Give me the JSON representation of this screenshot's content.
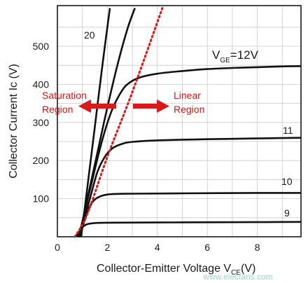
{
  "chart_data": {
    "type": "line",
    "xlabel_main": "Collector-Emitter Voltage V",
    "xlabel_sub": "CE",
    "xlabel_unit": "(V)",
    "ylabel": "Collector Current Ic (V)",
    "xlim": [
      0,
      10
    ],
    "ylim": [
      0,
      600
    ],
    "x_ticks": [
      0,
      2,
      4,
      6,
      8
    ],
    "y_ticks": [
      100,
      200,
      300,
      400,
      500
    ],
    "grid": true,
    "series": [
      {
        "name": "9",
        "color": "#111111",
        "points": [
          [
            0.7,
            0
          ],
          [
            0.85,
            10
          ],
          [
            1.0,
            25
          ],
          [
            1.2,
            33
          ],
          [
            1.5,
            36
          ],
          [
            2,
            37
          ],
          [
            4,
            37.5
          ],
          [
            6,
            38
          ],
          [
            8,
            38.5
          ],
          [
            10,
            39
          ]
        ]
      },
      {
        "name": "10",
        "color": "#111111",
        "points": [
          [
            0.75,
            0
          ],
          [
            0.95,
            15
          ],
          [
            1.1,
            45
          ],
          [
            1.3,
            80
          ],
          [
            1.5,
            98
          ],
          [
            1.8,
            108
          ],
          [
            2.2,
            112
          ],
          [
            3,
            113
          ],
          [
            5,
            114
          ],
          [
            8,
            115
          ],
          [
            10,
            115
          ]
        ]
      },
      {
        "name": "11",
        "color": "#111111",
        "points": [
          [
            0.8,
            0
          ],
          [
            1.0,
            30
          ],
          [
            1.3,
            100
          ],
          [
            1.6,
            170
          ],
          [
            1.9,
            210
          ],
          [
            2.2,
            232
          ],
          [
            2.6,
            244
          ],
          [
            3,
            249
          ],
          [
            4,
            253
          ],
          [
            6,
            256
          ],
          [
            8,
            258
          ],
          [
            10,
            260
          ]
        ]
      },
      {
        "name": "V_GE=12V",
        "color": "#111111",
        "points": [
          [
            0.85,
            0
          ],
          [
            1.0,
            40
          ],
          [
            1.4,
            150
          ],
          [
            1.8,
            255
          ],
          [
            2.2,
            335
          ],
          [
            2.6,
            385
          ],
          [
            2.9,
            405
          ],
          [
            3.3,
            418
          ],
          [
            4,
            428
          ],
          [
            5,
            435
          ],
          [
            6,
            440
          ],
          [
            7,
            443
          ],
          [
            8,
            445
          ],
          [
            9,
            447
          ],
          [
            10,
            448
          ]
        ]
      },
      {
        "name": "",
        "color": "#111111",
        "points": [
          [
            0.9,
            0
          ],
          [
            1.2,
            100
          ],
          [
            1.6,
            220
          ],
          [
            2.0,
            340
          ],
          [
            2.4,
            450
          ],
          [
            2.8,
            545
          ],
          [
            3.1,
            600
          ]
        ]
      },
      {
        "name": "20",
        "color": "#111111",
        "points": [
          [
            0.95,
            0
          ],
          [
            1.2,
            130
          ],
          [
            1.5,
            290
          ],
          [
            1.8,
            450
          ],
          [
            2.1,
            600
          ]
        ]
      }
    ],
    "boundary_line": {
      "style": "dotted",
      "color": "#d91a1a",
      "points": [
        [
          0.7,
          0
        ],
        [
          1.2,
          60
        ],
        [
          2.0,
          210
        ],
        [
          3.0,
          380
        ],
        [
          4.2,
          600
        ]
      ]
    },
    "labels": {
      "curve_20": "20",
      "curve_11": "11",
      "curve_10": "10",
      "curve_9": "9",
      "vge_main": "V",
      "vge_sub": "GE",
      "vge_value": "=12V",
      "saturation_line1": "Saturation",
      "saturation_line2": "Region",
      "linear_line1": "Linear",
      "linear_line2": "Region"
    },
    "watermark": "www.elecfans.com"
  }
}
